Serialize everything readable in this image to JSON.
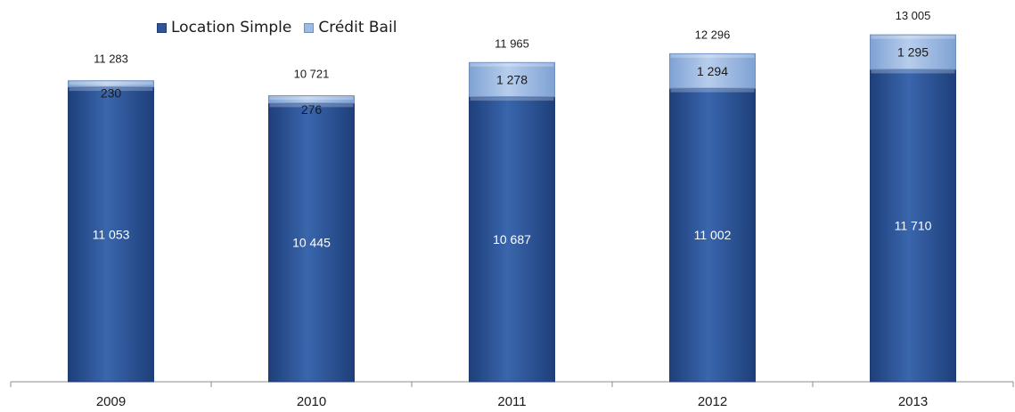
{
  "chart_data": {
    "type": "bar",
    "stacked": true,
    "categories": [
      "2009",
      "2010",
      "2011",
      "2012",
      "2013"
    ],
    "series": [
      {
        "name": "Location Simple",
        "values": [
          11053,
          10445,
          10687,
          11002,
          11710
        ]
      },
      {
        "name": "Crédit Bail",
        "values": [
          230,
          276,
          1278,
          1294,
          1295
        ]
      }
    ],
    "totals": [
      11283,
      10721,
      11965,
      12296,
      13005
    ],
    "value_labels": {
      "series": [
        [
          "11 053",
          "10 445",
          "10 687",
          "11 002",
          "11 710"
        ],
        [
          "230",
          "276",
          "1 278",
          "1 294",
          "1 295"
        ]
      ],
      "totals": [
        "11 283",
        "10 721",
        "11 965",
        "12 296",
        "13 005"
      ]
    },
    "title": "",
    "xlabel": "",
    "ylabel": "",
    "legend": "top-left",
    "grid": false,
    "colors": [
      "#2f5597",
      "#9dbbe3"
    ]
  }
}
